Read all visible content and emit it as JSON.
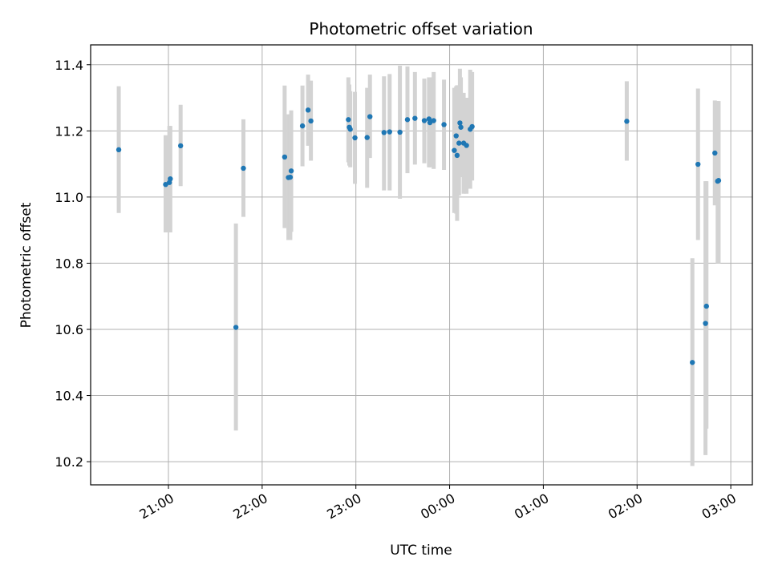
{
  "chart_data": {
    "type": "scatter",
    "title": "Photometric offset variation",
    "xlabel": "UTC time",
    "ylabel": "Photometric offset",
    "x_unit": "hours since 00:00 UTC",
    "xlim": [
      -3.83,
      3.23
    ],
    "ylim": [
      10.13,
      11.46
    ],
    "grid": true,
    "xticks": [
      {
        "value": -3,
        "label": "21:00"
      },
      {
        "value": -2,
        "label": "22:00"
      },
      {
        "value": -1,
        "label": "23:00"
      },
      {
        "value": 0,
        "label": "00:00"
      },
      {
        "value": 1,
        "label": "01:00"
      },
      {
        "value": 2,
        "label": "02:00"
      },
      {
        "value": 3,
        "label": "03:00"
      }
    ],
    "yticks": [
      {
        "value": 10.2,
        "label": "10.2"
      },
      {
        "value": 10.4,
        "label": "10.4"
      },
      {
        "value": 10.6,
        "label": "10.6"
      },
      {
        "value": 10.8,
        "label": "10.8"
      },
      {
        "value": 11.0,
        "label": "11.0"
      },
      {
        "value": 11.2,
        "label": "11.2"
      },
      {
        "value": 11.4,
        "label": "11.4"
      }
    ],
    "marker_color": "#1f77b4",
    "errorbar_color": "#d3d3d3",
    "points": [
      {
        "x": -3.53,
        "y": 11.143,
        "lo": 10.952,
        "hi": 11.335
      },
      {
        "x": -3.03,
        "y": 11.038,
        "lo": 10.893,
        "hi": 11.187
      },
      {
        "x": -2.99,
        "y": 11.044,
        "lo": 10.893,
        "hi": 11.215
      },
      {
        "x": -2.98,
        "y": 11.055,
        "lo": 10.893,
        "hi": 11.215
      },
      {
        "x": -2.87,
        "y": 11.155,
        "lo": 11.033,
        "hi": 11.279
      },
      {
        "x": -2.28,
        "y": 10.606,
        "lo": 10.294,
        "hi": 10.92
      },
      {
        "x": -2.2,
        "y": 11.087,
        "lo": 10.94,
        "hi": 11.235
      },
      {
        "x": -1.76,
        "y": 11.121,
        "lo": 10.906,
        "hi": 11.337
      },
      {
        "x": -1.72,
        "y": 11.059,
        "lo": 10.87,
        "hi": 11.25
      },
      {
        "x": -1.7,
        "y": 11.06,
        "lo": 10.87,
        "hi": 11.25
      },
      {
        "x": -1.69,
        "y": 11.079,
        "lo": 10.895,
        "hi": 11.262
      },
      {
        "x": -1.57,
        "y": 11.215,
        "lo": 11.093,
        "hi": 11.337
      },
      {
        "x": -1.51,
        "y": 11.263,
        "lo": 11.155,
        "hi": 11.37
      },
      {
        "x": -1.48,
        "y": 11.23,
        "lo": 11.11,
        "hi": 11.352
      },
      {
        "x": -1.08,
        "y": 11.234,
        "lo": 11.105,
        "hi": 11.362
      },
      {
        "x": -1.07,
        "y": 11.211,
        "lo": 11.095,
        "hi": 11.34
      },
      {
        "x": -1.06,
        "y": 11.205,
        "lo": 11.09,
        "hi": 11.32
      },
      {
        "x": -1.01,
        "y": 11.179,
        "lo": 11.04,
        "hi": 11.318
      },
      {
        "x": -0.88,
        "y": 11.18,
        "lo": 11.028,
        "hi": 11.33
      },
      {
        "x": -0.85,
        "y": 11.243,
        "lo": 11.118,
        "hi": 11.37
      },
      {
        "x": -0.7,
        "y": 11.195,
        "lo": 11.02,
        "hi": 11.365
      },
      {
        "x": -0.64,
        "y": 11.197,
        "lo": 11.02,
        "hi": 11.372
      },
      {
        "x": -0.53,
        "y": 11.196,
        "lo": 10.995,
        "hi": 11.397
      },
      {
        "x": -0.45,
        "y": 11.234,
        "lo": 11.072,
        "hi": 11.395
      },
      {
        "x": -0.37,
        "y": 11.238,
        "lo": 11.098,
        "hi": 11.378
      },
      {
        "x": -0.27,
        "y": 11.231,
        "lo": 11.102,
        "hi": 11.358
      },
      {
        "x": -0.22,
        "y": 11.236,
        "lo": 11.09,
        "hi": 11.362
      },
      {
        "x": -0.21,
        "y": 11.225,
        "lo": 11.09,
        "hi": 11.362
      },
      {
        "x": -0.17,
        "y": 11.231,
        "lo": 11.085,
        "hi": 11.378
      },
      {
        "x": -0.06,
        "y": 11.219,
        "lo": 11.082,
        "hi": 11.355
      },
      {
        "x": 0.05,
        "y": 11.141,
        "lo": 10.952,
        "hi": 11.33
      },
      {
        "x": 0.07,
        "y": 11.185,
        "lo": 10.95,
        "hi": 11.335
      },
      {
        "x": 0.08,
        "y": 11.126,
        "lo": 10.928,
        "hi": 11.338
      },
      {
        "x": 0.1,
        "y": 11.163,
        "lo": 11.005,
        "hi": 11.322
      },
      {
        "x": 0.11,
        "y": 11.224,
        "lo": 11.06,
        "hi": 11.388
      },
      {
        "x": 0.12,
        "y": 11.211,
        "lo": 11.062,
        "hi": 11.362
      },
      {
        "x": 0.15,
        "y": 11.163,
        "lo": 11.01,
        "hi": 11.315
      },
      {
        "x": 0.18,
        "y": 11.156,
        "lo": 11.01,
        "hi": 11.3
      },
      {
        "x": 0.22,
        "y": 11.205,
        "lo": 11.025,
        "hi": 11.385
      },
      {
        "x": 0.24,
        "y": 11.213,
        "lo": 11.05,
        "hi": 11.378
      },
      {
        "x": 1.89,
        "y": 11.229,
        "lo": 11.11,
        "hi": 11.35
      },
      {
        "x": 2.59,
        "y": 10.5,
        "lo": 10.187,
        "hi": 10.815
      },
      {
        "x": 2.65,
        "y": 11.099,
        "lo": 10.87,
        "hi": 11.328
      },
      {
        "x": 2.73,
        "y": 10.618,
        "lo": 10.22,
        "hi": 11.048
      },
      {
        "x": 2.74,
        "y": 10.67,
        "lo": 10.3,
        "hi": 11.048
      },
      {
        "x": 2.83,
        "y": 11.133,
        "lo": 10.975,
        "hi": 11.292
      },
      {
        "x": 2.86,
        "y": 11.048,
        "lo": 10.8,
        "hi": 11.29
      },
      {
        "x": 2.87,
        "y": 11.05,
        "lo": 10.8,
        "hi": 11.29
      }
    ]
  }
}
